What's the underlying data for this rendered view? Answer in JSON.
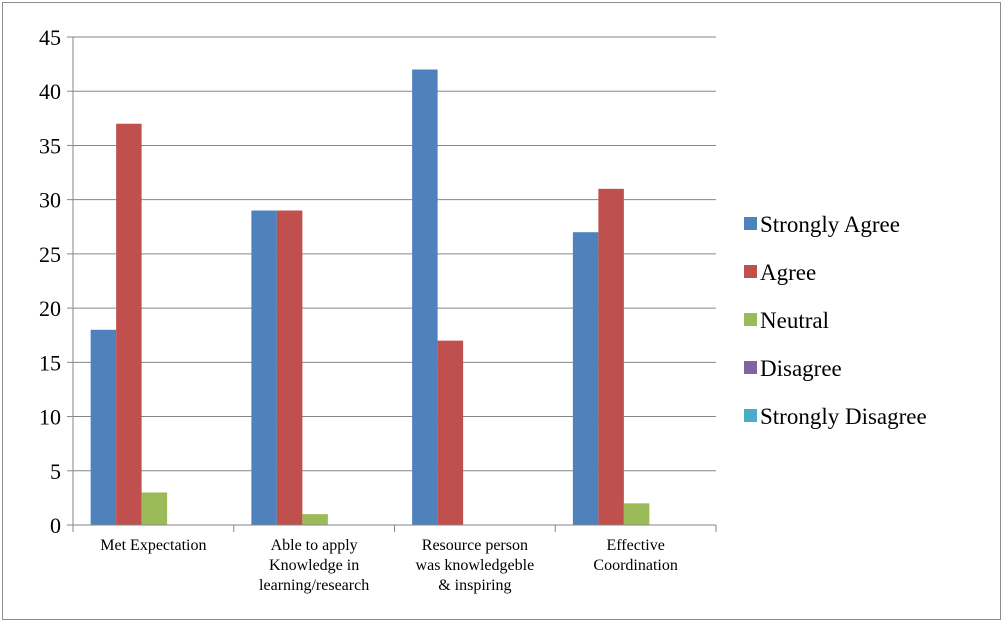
{
  "chart_data": {
    "type": "bar",
    "title": "",
    "xlabel": "",
    "ylabel": "",
    "categories": [
      [
        "Met Expectation"
      ],
      [
        "Able to apply",
        "Knowledge in",
        "learning/research"
      ],
      [
        "Resource person",
        "was knowledgeble",
        "& inspiring"
      ],
      [
        "Effective",
        "Coordination"
      ]
    ],
    "series": [
      {
        "name": "Strongly Agree",
        "color": "#4F81BD",
        "values": [
          18,
          29,
          42,
          27
        ]
      },
      {
        "name": "Agree",
        "color": "#C0504D",
        "values": [
          37,
          29,
          17,
          31
        ]
      },
      {
        "name": "Neutral",
        "color": "#9BBB59",
        "values": [
          3,
          1,
          0,
          2
        ]
      },
      {
        "name": "Disagree",
        "color": "#8064A2",
        "values": [
          0,
          0,
          0,
          0
        ]
      },
      {
        "name": "Strongly Disagree",
        "color": "#4BACC6",
        "values": [
          0,
          0,
          0,
          0
        ]
      }
    ],
    "ylim": [
      0,
      45
    ],
    "yticks": [
      0,
      5,
      10,
      15,
      20,
      25,
      30,
      35,
      40,
      45
    ],
    "grid": true,
    "legend": "right"
  }
}
